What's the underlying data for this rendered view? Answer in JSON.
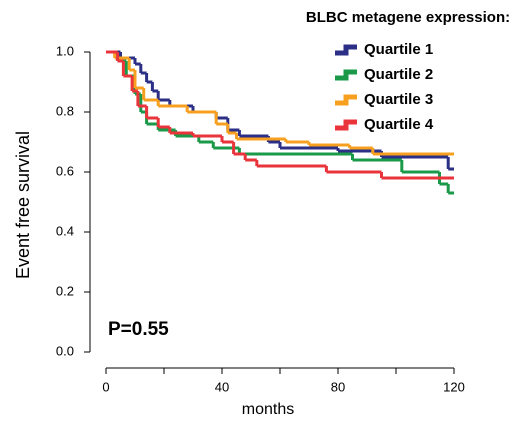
{
  "chart_data": {
    "type": "step",
    "title": "BLBC metagene expression:",
    "xlabel": "months",
    "ylabel": "Event free survival",
    "annotation": "P=0.55",
    "xlim": [
      0,
      120
    ],
    "xticks": [
      0,
      40,
      80,
      120
    ],
    "xminorticks": [
      20,
      60,
      100
    ],
    "ylim": [
      0,
      1
    ],
    "yticks": [
      {
        "value": 0,
        "label": "0.0"
      },
      0.2,
      0.4,
      0.6,
      0.8,
      {
        "value": 1,
        "label": "1.0"
      }
    ],
    "grid": false,
    "legend": "upper right",
    "series": [
      {
        "name": "Quartile 1",
        "color": "#2b2f86",
        "x": [
          0,
          5,
          10,
          12,
          14,
          16,
          18,
          22,
          30,
          38,
          42,
          46,
          56,
          60,
          80,
          95,
          118,
          120
        ],
        "values": [
          1.0,
          0.98,
          0.96,
          0.93,
          0.9,
          0.87,
          0.84,
          0.82,
          0.8,
          0.78,
          0.74,
          0.72,
          0.7,
          0.68,
          0.67,
          0.65,
          0.61,
          0.61
        ]
      },
      {
        "name": "Quartile 2",
        "color": "#1a9a48",
        "x": [
          0,
          4,
          7,
          10,
          12,
          14,
          18,
          24,
          32,
          37,
          46,
          85,
          102,
          115,
          118,
          120
        ],
        "values": [
          1.0,
          0.97,
          0.92,
          0.86,
          0.8,
          0.76,
          0.74,
          0.72,
          0.7,
          0.68,
          0.66,
          0.64,
          0.6,
          0.56,
          0.53,
          0.53
        ]
      },
      {
        "name": "Quartile 3",
        "color": "#f7a020",
        "x": [
          0,
          3,
          8,
          10,
          13,
          18,
          28,
          38,
          42,
          45,
          62,
          70,
          84,
          92,
          120
        ],
        "values": [
          1.0,
          0.98,
          0.94,
          0.88,
          0.84,
          0.82,
          0.8,
          0.76,
          0.73,
          0.71,
          0.7,
          0.69,
          0.68,
          0.66,
          0.66
        ]
      },
      {
        "name": "Quartile 4",
        "color": "#e8343a",
        "x": [
          0,
          4,
          6,
          9,
          11,
          14,
          18,
          22,
          30,
          40,
          44,
          48,
          52,
          76,
          95,
          120
        ],
        "values": [
          1.0,
          0.97,
          0.92,
          0.87,
          0.82,
          0.78,
          0.75,
          0.73,
          0.72,
          0.7,
          0.66,
          0.64,
          0.62,
          0.6,
          0.58,
          0.58
        ]
      }
    ]
  }
}
